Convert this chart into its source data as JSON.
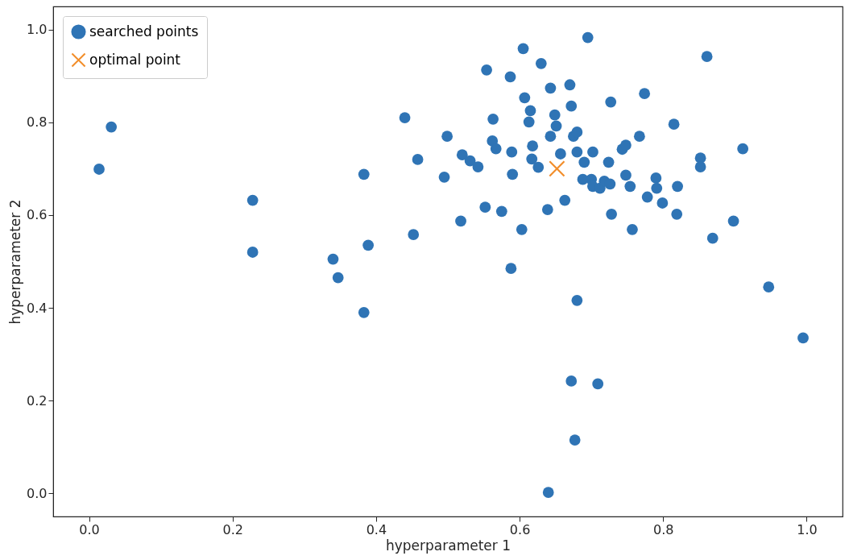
{
  "chart_data": {
    "type": "scatter",
    "xlabel": "hyperparameter 1",
    "ylabel": "hyperparameter 2",
    "legend": "top left",
    "xlim": [
      -0.05,
      1.05
    ],
    "ylim": [
      -0.05,
      1.05
    ],
    "xticks": [
      {
        "value": 0,
        "label": "0.0"
      },
      {
        "value": 0.2,
        "label": "0.2"
      },
      {
        "value": 0.4,
        "label": "0.4"
      },
      {
        "value": 0.6,
        "label": "0.6"
      },
      {
        "value": 0.8,
        "label": "0.8"
      },
      {
        "value": 1,
        "label": "1.0"
      }
    ],
    "yticks": [
      {
        "value": 0,
        "label": "0.0"
      },
      {
        "value": 0.2,
        "label": "0.2"
      },
      {
        "value": 0.4,
        "label": "0.4"
      },
      {
        "value": 0.6,
        "label": "0.6"
      },
      {
        "value": 0.8,
        "label": "0.8"
      },
      {
        "value": 1,
        "label": "1.0"
      }
    ],
    "series": [
      {
        "name": "searched points",
        "color": "#2f74b5",
        "marker": "circle",
        "x": [
          0.014,
          0.031,
          0.228,
          0.228,
          0.34,
          0.347,
          0.383,
          0.389,
          0.383,
          0.44,
          0.452,
          0.458,
          0.495,
          0.499,
          0.518,
          0.52,
          0.531,
          0.542,
          0.552,
          0.554,
          0.563,
          0.562,
          0.567,
          0.575,
          0.587,
          0.589,
          0.59,
          0.588,
          0.603,
          0.605,
          0.607,
          0.615,
          0.613,
          0.618,
          0.617,
          0.626,
          0.63,
          0.639,
          0.643,
          0.643,
          0.649,
          0.651,
          0.657,
          0.663,
          0.67,
          0.672,
          0.675,
          0.68,
          0.68,
          0.688,
          0.69,
          0.695,
          0.7,
          0.702,
          0.702,
          0.712,
          0.718,
          0.724,
          0.726,
          0.727,
          0.728,
          0.743,
          0.748,
          0.748,
          0.754,
          0.757,
          0.767,
          0.774,
          0.778,
          0.79,
          0.791,
          0.799,
          0.815,
          0.819,
          0.82,
          0.852,
          0.852,
          0.861,
          0.869,
          0.898,
          0.911,
          0.68,
          0.672,
          0.709,
          0.677,
          0.64,
          0.995,
          0.947
        ],
        "values": [
          0.699,
          0.79,
          0.632,
          0.52,
          0.505,
          0.465,
          0.688,
          0.535,
          0.39,
          0.81,
          0.558,
          0.72,
          0.682,
          0.77,
          0.587,
          0.73,
          0.717,
          0.704,
          0.617,
          0.913,
          0.807,
          0.76,
          0.743,
          0.608,
          0.898,
          0.736,
          0.688,
          0.485,
          0.569,
          0.959,
          0.853,
          0.825,
          0.801,
          0.749,
          0.721,
          0.703,
          0.927,
          0.612,
          0.874,
          0.77,
          0.816,
          0.792,
          0.732,
          0.632,
          0.881,
          0.835,
          0.77,
          0.779,
          0.736,
          0.677,
          0.714,
          0.983,
          0.677,
          0.662,
          0.736,
          0.658,
          0.673,
          0.714,
          0.667,
          0.844,
          0.602,
          0.742,
          0.751,
          0.686,
          0.662,
          0.569,
          0.77,
          0.862,
          0.639,
          0.68,
          0.658,
          0.626,
          0.796,
          0.602,
          0.662,
          0.723,
          0.704,
          0.942,
          0.55,
          0.587,
          0.743,
          0.416,
          0.242,
          0.236,
          0.115,
          0.002,
          0.335,
          0.445
        ]
      },
      {
        "name": "optimal point",
        "color": "#f28e2b",
        "marker": "cross",
        "x": [
          0.652
        ],
        "values": [
          0.7
        ]
      }
    ]
  }
}
